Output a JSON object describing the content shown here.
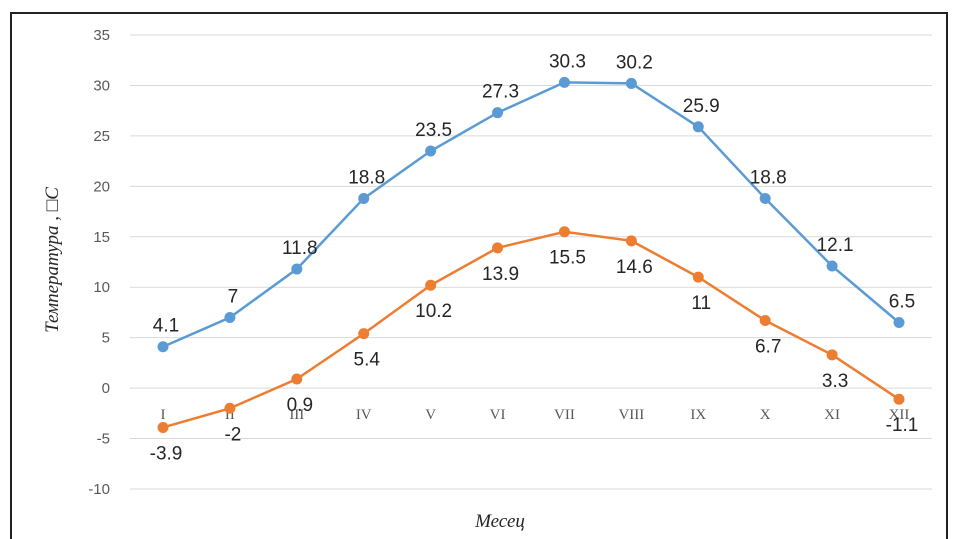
{
  "chart_data": {
    "type": "line",
    "categories": [
      "I",
      "II",
      "III",
      "IV",
      "V",
      "VI",
      "VII",
      "VIII",
      "IX",
      "X",
      "XI",
      "XII"
    ],
    "series": [
      {
        "values": [
          4.1,
          7,
          11.8,
          18.8,
          23.5,
          27.3,
          30.3,
          30.2,
          25.9,
          18.8,
          12.1,
          6.5
        ],
        "color": "#5b9bd5"
      },
      {
        "values": [
          -3.9,
          -2,
          0.9,
          5.4,
          10.2,
          13.9,
          15.5,
          14.6,
          11,
          6.7,
          3.3,
          -1.1
        ],
        "color": "#ed7d31"
      }
    ],
    "upper_labels": [
      "4.1",
      "7",
      "11.8",
      "18.8",
      "23.5",
      "27.3",
      "30.3",
      "30.2",
      "25.9",
      "18.8",
      "12.1",
      "6.5"
    ],
    "lower_labels": [
      "-3.9",
      "-2",
      "0.9",
      "5.4",
      "10.2",
      "13.9",
      "15.5",
      "14.6",
      "11",
      "6.7",
      "3.3",
      "-1.1"
    ],
    "xlabel": "Месец",
    "ylabel": "Температура , □C",
    "ylim": [
      -10,
      35
    ],
    "yticks": [
      "-10",
      "-5",
      "0",
      "5",
      "10",
      "15",
      "20",
      "25",
      "30",
      "35"
    ],
    "grid": true,
    "legend": "none",
    "gridline_color": "#d9d9d9"
  }
}
